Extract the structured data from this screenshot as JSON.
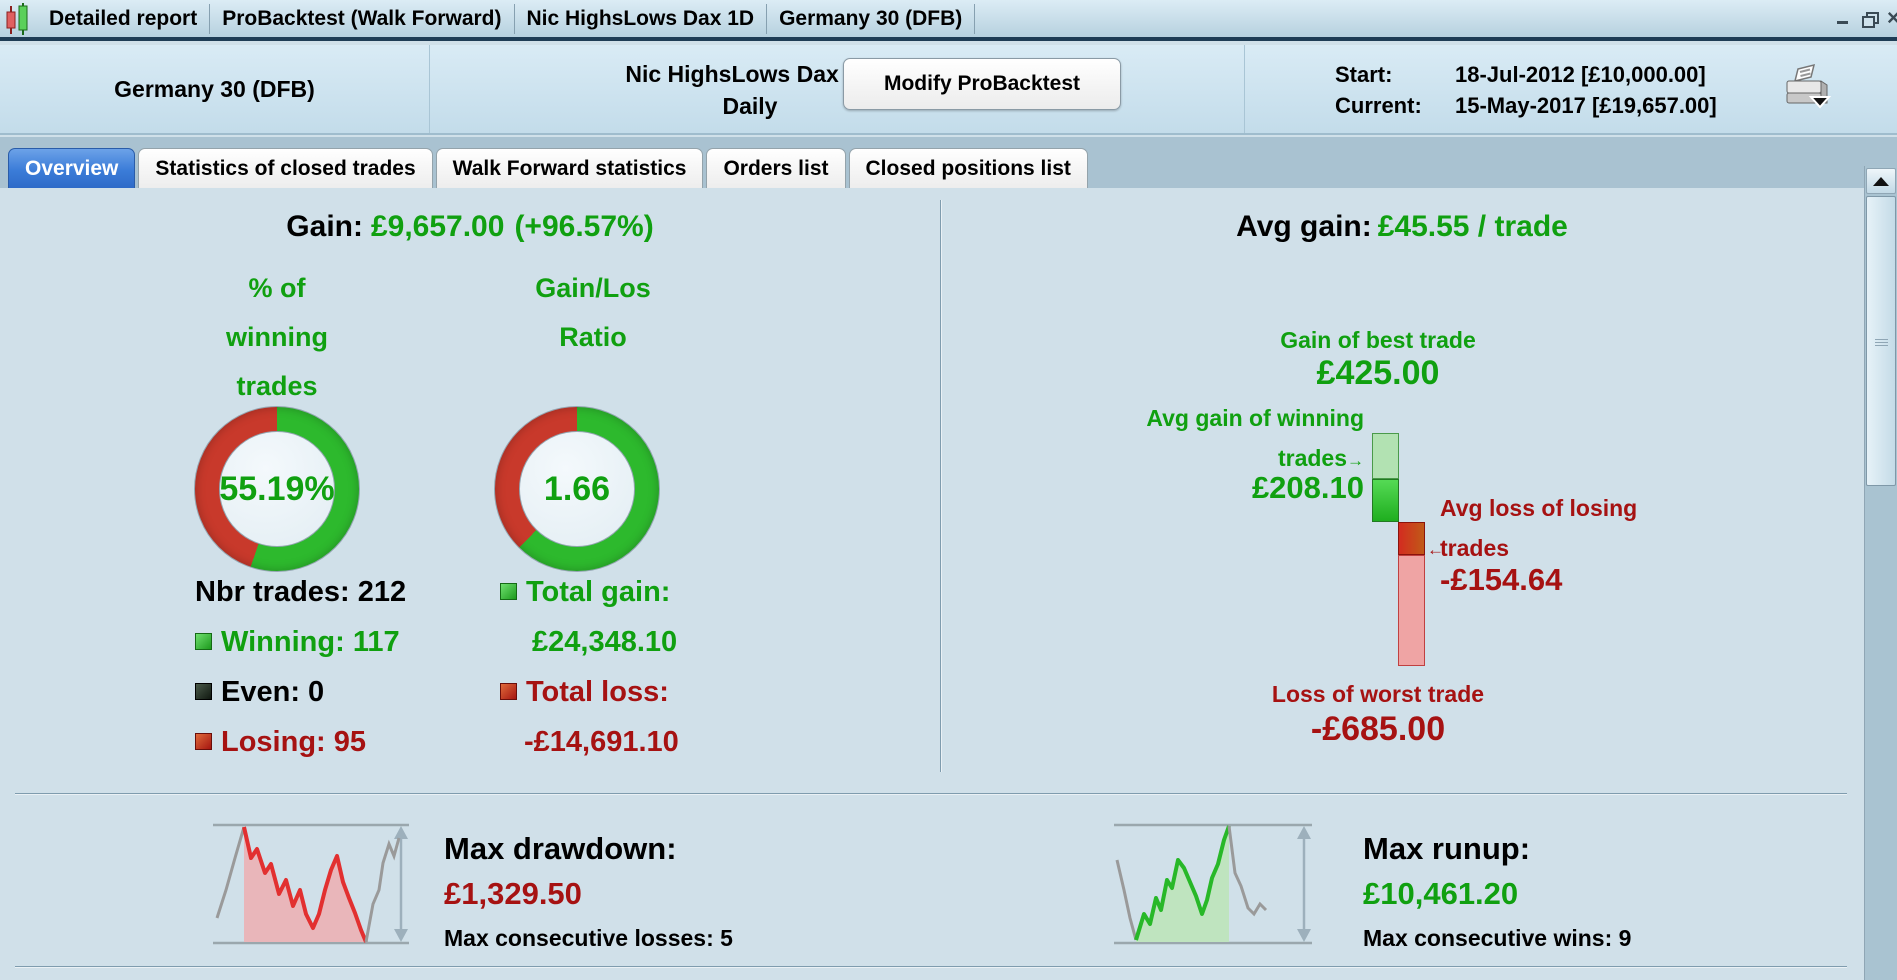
{
  "window": {
    "title_items": [
      "Detailed report",
      "ProBacktest (Walk Forward)",
      "Nic HighsLows Dax 1D",
      "Germany 30 (DFB)"
    ]
  },
  "header": {
    "instrument": "Germany 30 (DFB)",
    "system_name": "Nic HighsLows Dax 1D",
    "timeframe": "Daily",
    "modify_button": "Modify ProBacktest",
    "start_label": "Start:",
    "start_value": "18-Jul-2012 [£10,000.00]",
    "current_label": "Current:",
    "current_value": "15-May-2017 [£19,657.00]"
  },
  "tabs": [
    {
      "label": "Overview",
      "active": true
    },
    {
      "label": "Statistics of closed trades",
      "active": false
    },
    {
      "label": "Walk Forward statistics",
      "active": false
    },
    {
      "label": "Orders list",
      "active": false
    },
    {
      "label": "Closed positions list",
      "active": false
    }
  ],
  "overview": {
    "gain_label": "Gain:",
    "gain_value": "£9,657.00",
    "gain_pct": "(+96.57%)",
    "winning_title_1": "% of",
    "winning_title_2": "winning",
    "winning_title_3": "trades",
    "ratio_title_1": "Gain/Los",
    "ratio_title_2": "Ratio",
    "nbr_trades_label": "Nbr trades:",
    "nbr_trades": "212",
    "winning_label": "Winning:",
    "winning": "117",
    "even_label": "Even:",
    "even": "0",
    "losing_label": "Losing:",
    "losing": "95",
    "total_gain_label": "Total gain:",
    "total_gain": "£24,348.10",
    "total_loss_label": "Total loss:",
    "total_loss": "-£14,691.10",
    "avg_gain_label": "Avg gain:",
    "avg_gain_value": "£45.55 / trade",
    "best_trade_label": "Gain of best trade",
    "best_trade": "£425.00",
    "avg_win_label_1": "Avg gain of winning",
    "avg_win_label_2": "trades",
    "avg_win": "£208.10",
    "avg_loss_label_1": "Avg loss of losing",
    "avg_loss_label_2": "trades",
    "avg_loss": "-£154.64",
    "worst_trade_label": "Loss of worst trade",
    "worst_trade": "-£685.00",
    "max_drawdown_label": "Max drawdown:",
    "max_drawdown": "£1,329.50",
    "max_consec_losses": "Max consecutive losses: 5",
    "max_runup_label": "Max runup:",
    "max_runup": "£10,461.20",
    "max_consec_wins": "Max consecutive wins: 9"
  },
  "chart_data": [
    {
      "type": "pie",
      "title": "% of winning trades",
      "center_label": "55.19%",
      "slices": [
        {
          "label": "winning",
          "pct": 55.19,
          "color": "#2db92d"
        },
        {
          "label": "losing",
          "pct": 44.81,
          "color": "#c8392b"
        }
      ],
      "start_angle_deg": 0,
      "direction": "clockwise-from-top"
    },
    {
      "type": "pie",
      "title": "Gain/Los Ratio",
      "center_label": "1.66",
      "ratio_value": 1.66,
      "slices": [
        {
          "label": "gain",
          "pct": 62.41,
          "color": "#2db92d"
        },
        {
          "label": "loss",
          "pct": 37.59,
          "color": "#c8392b"
        }
      ],
      "start_angle_deg": 0,
      "direction": "clockwise-from-top"
    },
    {
      "type": "bar",
      "title": "Trade extremes waterfall (GBP)",
      "items": [
        {
          "key": "best",
          "label": "Gain of best trade",
          "value": 425.0
        },
        {
          "key": "avg_win",
          "label": "Avg gain of winning trades",
          "value": 208.1
        },
        {
          "key": "avg_loss",
          "label": "Avg loss of losing trades",
          "value": -154.64
        },
        {
          "key": "worst",
          "label": "Loss of worst trade",
          "value": -685.0
        }
      ]
    }
  ]
}
